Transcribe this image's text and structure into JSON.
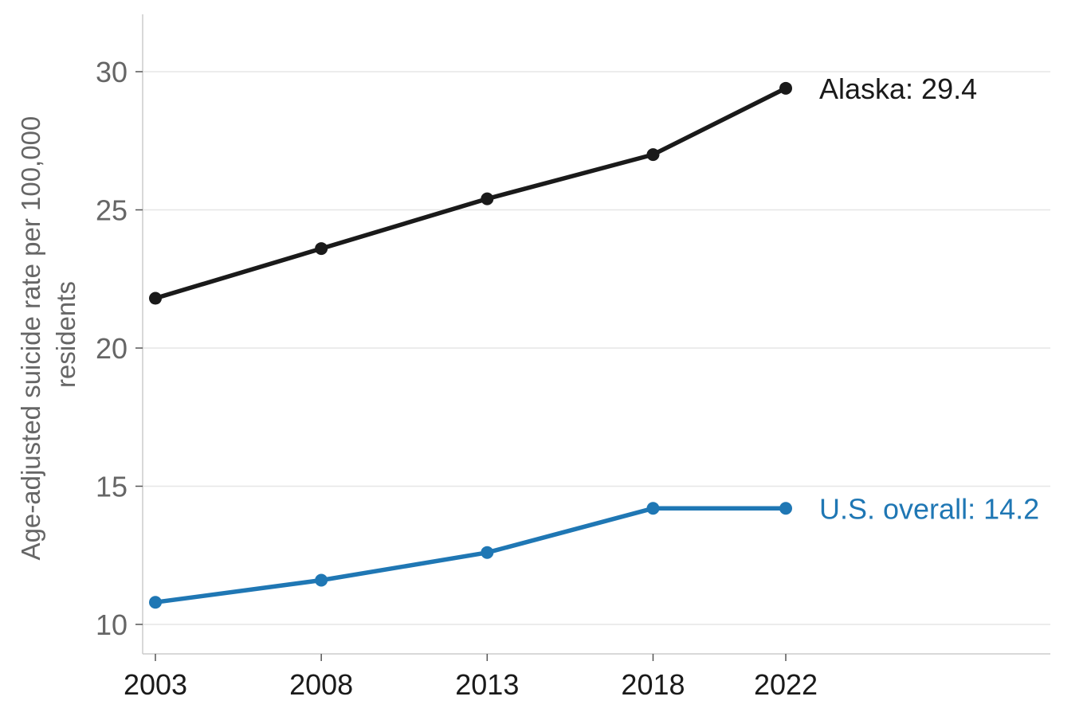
{
  "chart_data": {
    "type": "line",
    "x": [
      2003,
      2008,
      2013,
      2018,
      2022
    ],
    "ylabel_lines": [
      "Age-adjusted suicide rate per 100,000",
      "residents"
    ],
    "yticks": [
      10,
      15,
      20,
      25,
      30
    ],
    "xticks": [
      2003,
      2008,
      2013,
      2018,
      2022
    ],
    "ylim": [
      9,
      32
    ],
    "grid": "horizontal",
    "series": [
      {
        "name": "Alaska",
        "color": "#1a1a1a",
        "values": [
          21.8,
          23.6,
          25.4,
          27.0,
          29.4
        ],
        "end_label": "Alaska: 29.4"
      },
      {
        "name": "U.S. overall",
        "color": "#1f77b4",
        "values": [
          10.8,
          11.6,
          12.6,
          14.2,
          14.2
        ],
        "end_label": "U.S. overall: 14.2"
      }
    ]
  }
}
